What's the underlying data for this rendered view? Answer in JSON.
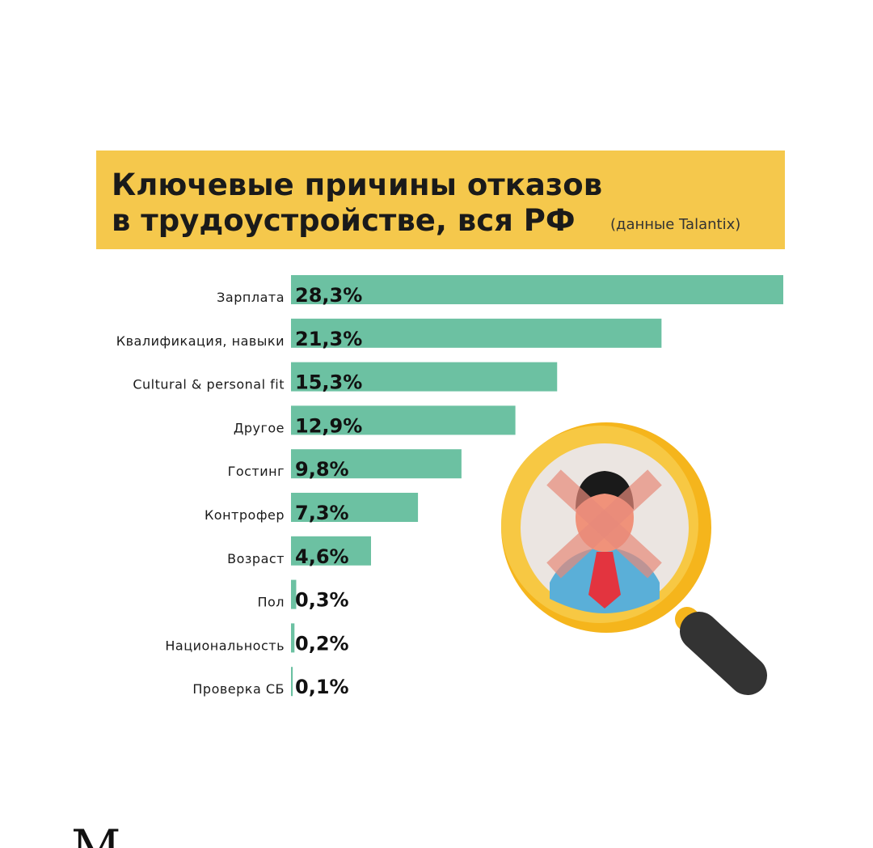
{
  "chart_data": {
    "type": "bar",
    "orientation": "horizontal",
    "title_lines": [
      "Ключевые причины отказов",
      "в трудоустройстве, вся РФ"
    ],
    "subtitle": "(данные Talantix)",
    "categories": [
      "Зарплата",
      "Квалификация, навыки",
      "Cultural & personal fit",
      "Другое",
      "Гостинг",
      "Контрофер",
      "Возраст",
      "Пол",
      "Национальность",
      "Проверка СБ"
    ],
    "values": [
      28.3,
      21.3,
      15.3,
      12.9,
      9.8,
      7.3,
      4.6,
      0.3,
      0.2,
      0.1
    ],
    "value_labels": [
      "28,3%",
      "21,3%",
      "15,3%",
      "12,9%",
      "9,8%",
      "7,3%",
      "4,6%",
      "0,3%",
      "0,2%",
      "0,1%"
    ],
    "color": "#6cc1a2"
  },
  "footer_text": "М"
}
